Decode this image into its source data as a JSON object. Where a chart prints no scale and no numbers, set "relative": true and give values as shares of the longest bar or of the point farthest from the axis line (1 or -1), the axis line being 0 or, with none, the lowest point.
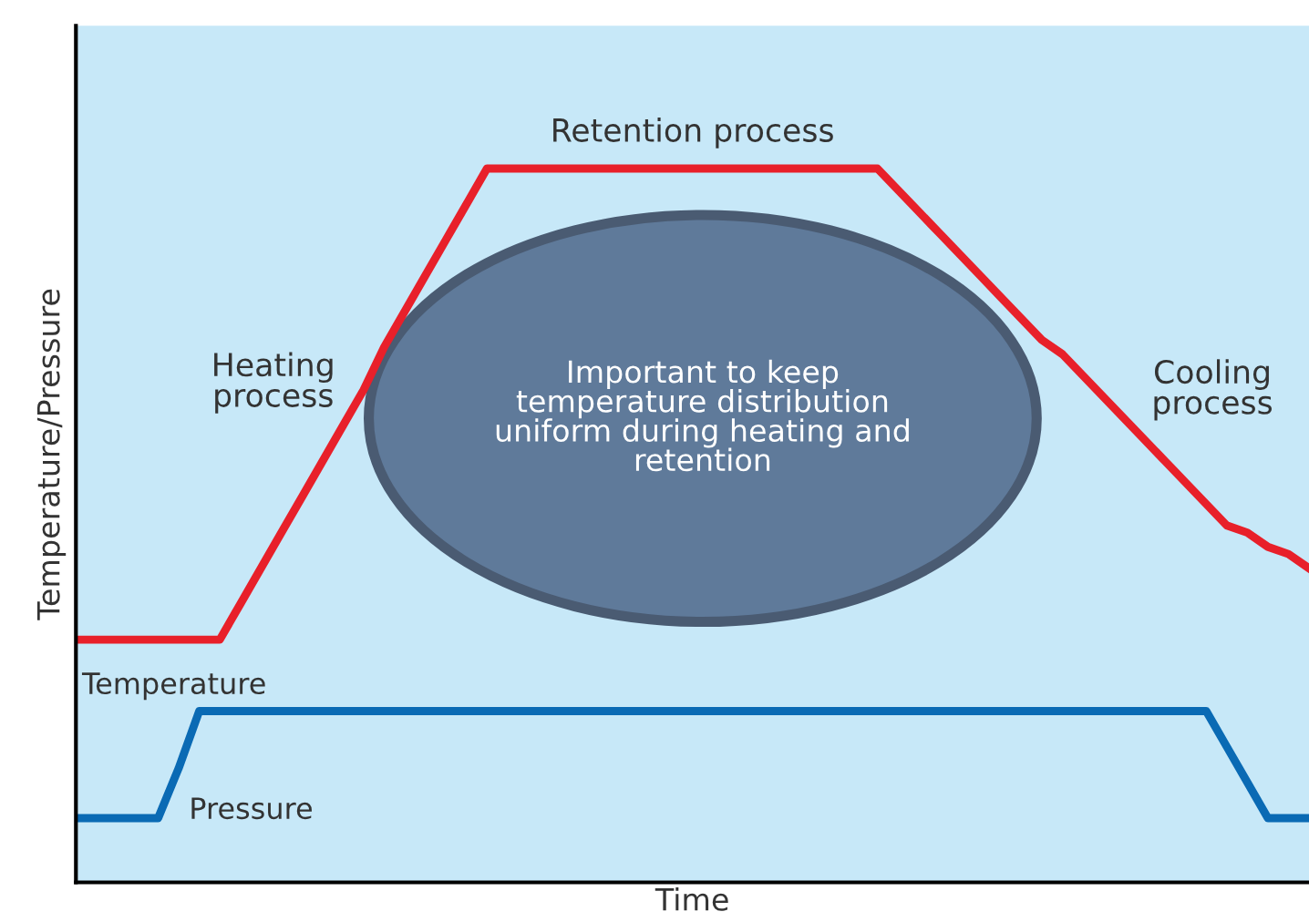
{
  "chart_data": {
    "type": "line",
    "relative": true,
    "xlabel": "Time",
    "ylabel": "Temperature/Pressure",
    "categories": [
      null,
      null,
      null,
      null,
      null,
      null,
      null,
      null,
      null,
      null,
      null,
      null,
      null,
      null,
      null,
      null,
      null,
      null,
      null,
      null,
      null,
      null,
      null,
      null,
      null,
      null,
      null,
      null,
      null,
      null,
      null,
      null,
      null,
      null,
      null,
      null,
      null,
      null,
      null,
      null,
      null,
      null,
      null,
      null,
      null,
      null,
      null,
      null,
      null,
      null,
      null,
      null,
      null,
      null,
      null,
      null,
      null,
      null,
      null,
      null,
      null
    ],
    "series": [
      {
        "name": "Temperature",
        "color": "#e8202a",
        "values": [
          0.34,
          0.34,
          0.34,
          0.34,
          0.34,
          0.34,
          0.34,
          0.34,
          0.39,
          0.44,
          0.49,
          0.54,
          0.59,
          0.64,
          0.69,
          0.75,
          0.8,
          0.85,
          0.9,
          0.95,
          1,
          1,
          1,
          1,
          1,
          1,
          1,
          1,
          1,
          1,
          1,
          1,
          1,
          1,
          1,
          1,
          1,
          1,
          1,
          1,
          0.97,
          0.94,
          0.91,
          0.88,
          0.85,
          0.82,
          0.79,
          0.76,
          0.74,
          0.71,
          0.68,
          0.65,
          0.62,
          0.59,
          0.56,
          0.53,
          0.5,
          0.49,
          0.47,
          0.46,
          0.44
        ]
      },
      {
        "name": "Pressure",
        "color": "#0a6ab4",
        "values": [
          0.09,
          0.09,
          0.09,
          0.09,
          0.09,
          0.16,
          0.24,
          0.24,
          0.24,
          0.24,
          0.24,
          0.24,
          0.24,
          0.24,
          0.24,
          0.24,
          0.24,
          0.24,
          0.24,
          0.24,
          0.24,
          0.24,
          0.24,
          0.24,
          0.24,
          0.24,
          0.24,
          0.24,
          0.24,
          0.24,
          0.24,
          0.24,
          0.24,
          0.24,
          0.24,
          0.24,
          0.24,
          0.24,
          0.24,
          0.24,
          0.24,
          0.24,
          0.24,
          0.24,
          0.24,
          0.24,
          0.24,
          0.24,
          0.24,
          0.24,
          0.24,
          0.24,
          0.24,
          0.24,
          0.24,
          0.24,
          0.19,
          0.14,
          0.09,
          0.09,
          0.09
        ]
      }
    ],
    "annotations": [
      "Heating\nprocess",
      "Retention process",
      "Cooling\nprocess",
      "Important to keep\ntemperature distribution\nuniform during heating and\nretention"
    ],
    "legend": false,
    "marker": "none",
    "line_style": "solid"
  }
}
